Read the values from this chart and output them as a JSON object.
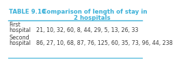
{
  "title_prefix": "TABLE 9.10",
  "title_main": "Comparison of length of stay in",
  "title_sub": "2 hospitals",
  "row1_label1": "First",
  "row1_label2": "hospital",
  "row1_data": "21, 10, 32, 60, 8, 44, 29, 5, 13, 26, 33",
  "row2_label1": "Second",
  "row2_label2": "hospital",
  "row2_data": "86, 27, 10, 68, 87, 76, 125, 60, 35, 73, 96, 44, 238",
  "header_color": "#3ab0d8",
  "line_color": "#3ab0d8",
  "bg_color": "#ffffff",
  "title_prefix_color": "#3ab0d8",
  "title_main_color": "#3ab0d8",
  "text_color": "#3d3d3d",
  "font_size": 5.8,
  "title_font_size": 6.2
}
